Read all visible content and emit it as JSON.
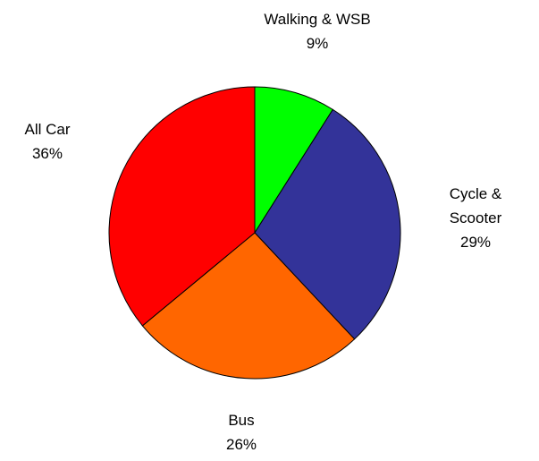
{
  "chart_data": {
    "type": "pie",
    "categories": [
      "Walking & WSB",
      "Cycle & Scooter",
      "Bus",
      "All Car"
    ],
    "values": [
      9,
      29,
      26,
      36
    ],
    "value_labels": [
      "9%",
      "29%",
      "26%",
      "36%"
    ],
    "colors": [
      "#00ff00",
      "#333399",
      "#ff6600",
      "#ff0000"
    ]
  }
}
